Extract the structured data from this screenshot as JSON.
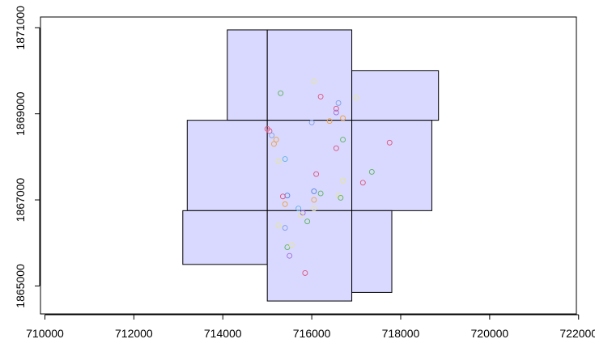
{
  "chart_data": {
    "type": "scatter",
    "title": "",
    "xlabel": "",
    "ylabel": "",
    "xlim": [
      709900,
      721950
    ],
    "ylim": [
      1864350,
      1871250
    ],
    "x_ticks": [
      710000,
      712000,
      714000,
      716000,
      718000,
      720000,
      722000
    ],
    "x_tick_labels": [
      "710000",
      "712000",
      "714000",
      "716000",
      "718000",
      "720000",
      "722000"
    ],
    "y_ticks": [
      1865000,
      1867000,
      1869000,
      1871000
    ],
    "y_tick_labels": [
      "1865000",
      "1867000",
      "1869000",
      "1871000"
    ],
    "grid": false,
    "legend": "none",
    "fill_color": "#d9d9ff",
    "edge_color": "#000000",
    "polygons": [
      {
        "xmin": 714100,
        "xmax": 715000,
        "ymin": 1868850,
        "ymax": 1870950
      },
      {
        "xmin": 715000,
        "xmax": 716900,
        "ymin": 1868850,
        "ymax": 1870950
      },
      {
        "xmin": 716900,
        "xmax": 718850,
        "ymin": 1868850,
        "ymax": 1870000
      },
      {
        "xmin": 713200,
        "xmax": 715000,
        "ymin": 1866750,
        "ymax": 1868850
      },
      {
        "xmin": 715000,
        "xmax": 716900,
        "ymin": 1866750,
        "ymax": 1868850
      },
      {
        "xmin": 716900,
        "xmax": 718700,
        "ymin": 1866750,
        "ymax": 1868850
      },
      {
        "xmin": 713100,
        "xmax": 715000,
        "ymin": 1865500,
        "ymax": 1866750
      },
      {
        "xmin": 715000,
        "xmax": 716900,
        "ymin": 1864650,
        "ymax": 1866750
      },
      {
        "xmin": 716900,
        "xmax": 717800,
        "ymin": 1864850,
        "ymax": 1866750
      }
    ],
    "points": [
      {
        "x": 716050,
        "y": 1869750,
        "color": "#e6e68c"
      },
      {
        "x": 715300,
        "y": 1869480,
        "color": "#59b359"
      },
      {
        "x": 716200,
        "y": 1869400,
        "color": "#e0507a"
      },
      {
        "x": 716600,
        "y": 1869250,
        "color": "#7f9fe6"
      },
      {
        "x": 717000,
        "y": 1869370,
        "color": "#e6e68c"
      },
      {
        "x": 716550,
        "y": 1869120,
        "color": "#e0507a"
      },
      {
        "x": 716550,
        "y": 1869030,
        "color": "#a06fd9"
      },
      {
        "x": 716700,
        "y": 1868900,
        "color": "#f0a040"
      },
      {
        "x": 716400,
        "y": 1868830,
        "color": "#f0a040"
      },
      {
        "x": 716000,
        "y": 1868800,
        "color": "#7f9fe6"
      },
      {
        "x": 715000,
        "y": 1868650,
        "color": "#e0507a"
      },
      {
        "x": 715050,
        "y": 1868600,
        "color": "#e0507a"
      },
      {
        "x": 715100,
        "y": 1868500,
        "color": "#7f9fe6"
      },
      {
        "x": 715200,
        "y": 1868400,
        "color": "#f0a040"
      },
      {
        "x": 715150,
        "y": 1868300,
        "color": "#f0a040"
      },
      {
        "x": 716700,
        "y": 1868400,
        "color": "#59b359"
      },
      {
        "x": 716550,
        "y": 1868200,
        "color": "#e0507a"
      },
      {
        "x": 717750,
        "y": 1868330,
        "color": "#e0507a"
      },
      {
        "x": 715400,
        "y": 1867950,
        "color": "#59b3e6"
      },
      {
        "x": 715250,
        "y": 1867900,
        "color": "#e6e68c"
      },
      {
        "x": 717350,
        "y": 1867650,
        "color": "#59b359"
      },
      {
        "x": 716100,
        "y": 1867600,
        "color": "#e0507a"
      },
      {
        "x": 717150,
        "y": 1867400,
        "color": "#e0507a"
      },
      {
        "x": 716700,
        "y": 1867450,
        "color": "#e6e68c"
      },
      {
        "x": 716050,
        "y": 1867200,
        "color": "#4f7fd9"
      },
      {
        "x": 716200,
        "y": 1867150,
        "color": "#59b359"
      },
      {
        "x": 715450,
        "y": 1867100,
        "color": "#4f7fd9"
      },
      {
        "x": 715350,
        "y": 1867080,
        "color": "#e0507a"
      },
      {
        "x": 716600,
        "y": 1867100,
        "color": "#e6e68c"
      },
      {
        "x": 716650,
        "y": 1867050,
        "color": "#59b359"
      },
      {
        "x": 716050,
        "y": 1867000,
        "color": "#f0a040"
      },
      {
        "x": 715400,
        "y": 1866900,
        "color": "#f0a040"
      },
      {
        "x": 716050,
        "y": 1866800,
        "color": "#e6e68c"
      },
      {
        "x": 715700,
        "y": 1866800,
        "color": "#59b3e6"
      },
      {
        "x": 715800,
        "y": 1866700,
        "color": "#a06fd9"
      },
      {
        "x": 715750,
        "y": 1866650,
        "color": "#e6e68c"
      },
      {
        "x": 715900,
        "y": 1866500,
        "color": "#59b359"
      },
      {
        "x": 715250,
        "y": 1866400,
        "color": "#e6e68c"
      },
      {
        "x": 715400,
        "y": 1866350,
        "color": "#7f9fe6"
      },
      {
        "x": 715450,
        "y": 1865900,
        "color": "#59b359"
      },
      {
        "x": 715550,
        "y": 1865950,
        "color": "#e6e68c"
      },
      {
        "x": 715500,
        "y": 1865700,
        "color": "#a06fd9"
      },
      {
        "x": 715850,
        "y": 1865300,
        "color": "#e0507a"
      }
    ]
  }
}
